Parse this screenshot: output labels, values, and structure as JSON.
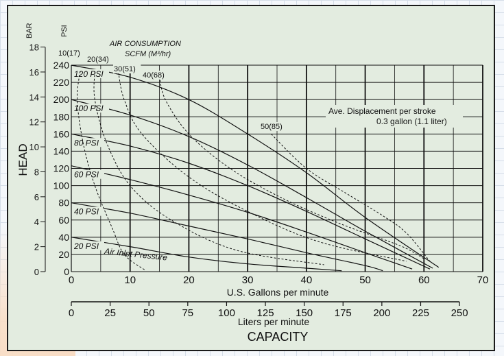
{
  "chart_data": {
    "type": "line",
    "bar_label": "BAR",
    "psi_label": "PSI",
    "y_psi_ticks": [
      0,
      20,
      40,
      60,
      80,
      100,
      120,
      140,
      160,
      180,
      200,
      220,
      240
    ],
    "y_bar_ticks": [
      0,
      2,
      4,
      6,
      8,
      10,
      12,
      14,
      16,
      18
    ],
    "ylim_psi": [
      0,
      240
    ],
    "xlabel": "U.S. Gallons per minute",
    "x_gpm_ticks": [
      0,
      10,
      20,
      30,
      40,
      50,
      60,
      70
    ],
    "xlim_gpm": [
      0,
      70
    ],
    "x2label": "Liters per minute",
    "x_lpm_ticks": [
      0,
      25,
      50,
      75,
      100,
      125,
      150,
      175,
      200,
      225,
      250
    ],
    "ylabel": "HEAD",
    "capacity_label": "CAPACITY",
    "air_title_1": "AIR CONSUMPTION",
    "air_title_2": "SCFM (M³/hr)",
    "displacement_1": "Ave. Displacement per stroke",
    "displacement_2": "0.3 gallon (1.1 liter)",
    "inlet_label": "Air Inlet Pressure",
    "pressure_series": [
      {
        "name": "120 PSI",
        "points": [
          [
            0,
            240
          ],
          [
            10,
            226
          ],
          [
            20,
            200
          ],
          [
            30,
            160
          ],
          [
            40,
            115
          ],
          [
            50,
            63
          ],
          [
            62.5,
            5
          ]
        ]
      },
      {
        "name": "100 PSI",
        "points": [
          [
            0,
            200
          ],
          [
            10,
            182
          ],
          [
            20,
            157
          ],
          [
            30,
            124
          ],
          [
            40,
            86
          ],
          [
            50,
            47
          ],
          [
            61.5,
            4
          ]
        ]
      },
      {
        "name": "80 PSI",
        "points": [
          [
            0,
            160
          ],
          [
            10,
            146
          ],
          [
            20,
            126
          ],
          [
            30,
            100
          ],
          [
            40,
            70
          ],
          [
            50,
            38
          ],
          [
            61,
            3
          ]
        ]
      },
      {
        "name": "60 PSI",
        "points": [
          [
            0,
            123
          ],
          [
            10,
            107
          ],
          [
            20,
            89
          ],
          [
            30,
            69
          ],
          [
            40,
            46
          ],
          [
            50,
            22
          ],
          [
            58,
            3
          ]
        ]
      },
      {
        "name": "40 PSI",
        "points": [
          [
            0,
            80
          ],
          [
            10,
            68
          ],
          [
            20,
            53
          ],
          [
            30,
            38
          ],
          [
            40,
            22
          ],
          [
            50,
            7
          ],
          [
            53,
            1
          ]
        ]
      },
      {
        "name": "20 PSI",
        "points": [
          [
            0,
            40
          ],
          [
            10,
            29
          ],
          [
            20,
            17
          ],
          [
            30,
            9
          ],
          [
            40,
            4
          ],
          [
            46,
            1
          ]
        ]
      }
    ],
    "air_series": [
      {
        "name": "10(17)",
        "points": [
          [
            1.5,
            233
          ],
          [
            1,
            200
          ],
          [
            2,
            150
          ],
          [
            4,
            100
          ],
          [
            7,
            50
          ],
          [
            9,
            20
          ],
          [
            12.5,
            2
          ]
        ]
      },
      {
        "name": "20(34)",
        "points": [
          [
            4,
            233
          ],
          [
            4,
            200
          ],
          [
            6,
            150
          ],
          [
            10,
            100
          ],
          [
            17,
            60
          ],
          [
            28,
            25
          ],
          [
            43,
            8
          ]
        ]
      },
      {
        "name": "30(51)",
        "points": [
          [
            8,
            232
          ],
          [
            9,
            200
          ],
          [
            12,
            160
          ],
          [
            20,
            110
          ],
          [
            30,
            70
          ],
          [
            42,
            35
          ],
          [
            57,
            12
          ]
        ]
      },
      {
        "name": "40(68)",
        "points": [
          [
            15,
            227
          ],
          [
            16,
            200
          ],
          [
            20,
            160
          ],
          [
            27,
            120
          ],
          [
            36,
            85
          ],
          [
            46,
            55
          ],
          [
            56,
            30
          ],
          [
            60,
            15
          ]
        ]
      },
      {
        "name": "50(85)",
        "points": [
          [
            34,
            160
          ],
          [
            40,
            120
          ],
          [
            47,
            90
          ],
          [
            53,
            65
          ],
          [
            57,
            45
          ],
          [
            61,
            12
          ]
        ]
      }
    ],
    "grid": true
  }
}
